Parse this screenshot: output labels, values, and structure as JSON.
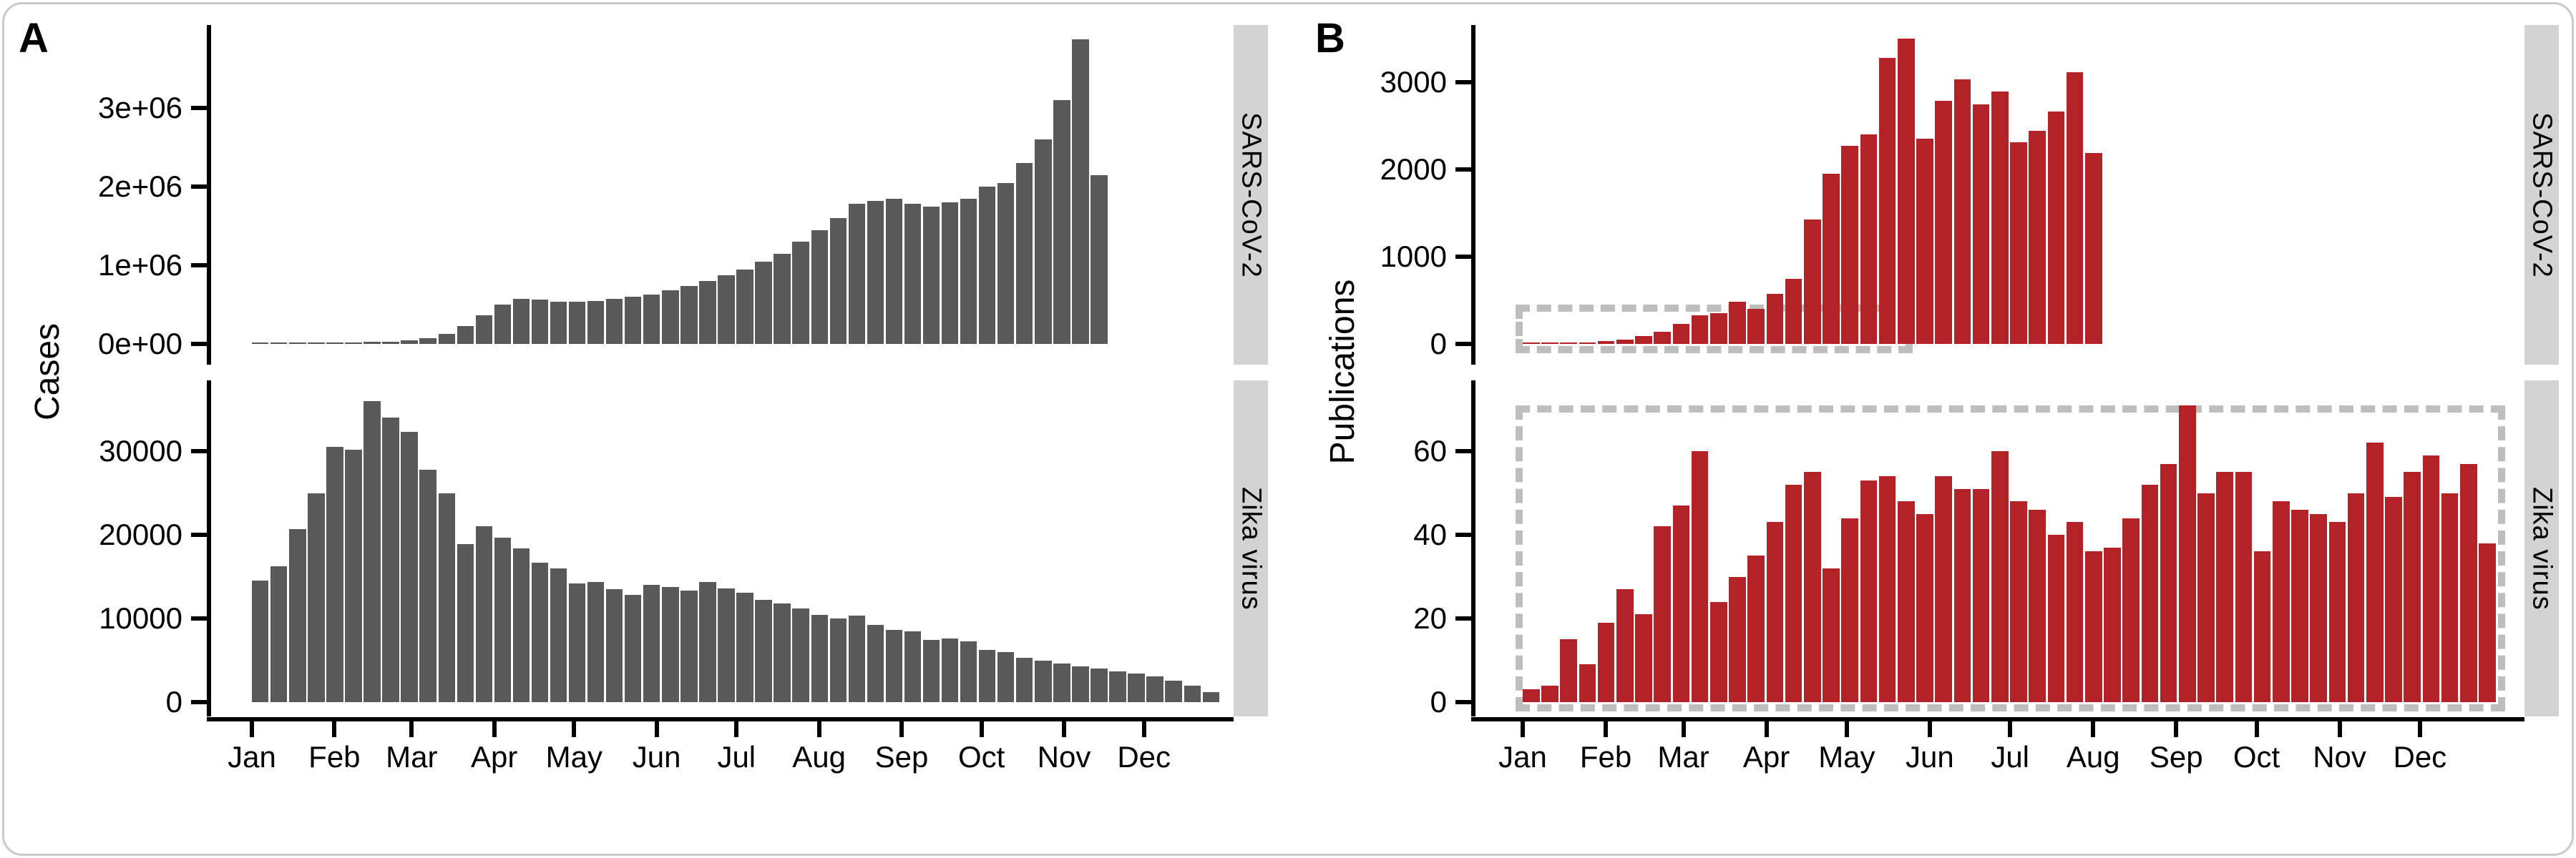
{
  "chart_data": {
    "type": "bar",
    "description": "Weekly bar charts: epidemic cases (panel A, gray) and scientific publications (panel B, red) for SARS-CoV-2 (2020) and Zika virus (2016), faceted by virus with months Jan-Dec on the x axis.",
    "x_axis": {
      "tick_labels": [
        "Jan",
        "Feb",
        "Mar",
        "Apr",
        "May",
        "Jun",
        "Jul",
        "Aug",
        "Sep",
        "Oct",
        "Nov",
        "Dec"
      ],
      "unit": "weekly bars across one year"
    },
    "styles": {
      "dash_color": "#BEBEBE",
      "strip_bg": "#D3D3D3",
      "axis_color": "#000000",
      "background": "#FFFFFF",
      "card_border": "#C9C9C9"
    },
    "panels": [
      {
        "label": "A",
        "y_axis_title": "Cases",
        "bar_color": "#595959",
        "facets": [
          {
            "strip_label": "SARS-CoV-2",
            "y_ticks": {
              "values": [
                0,
                1000000,
                2000000,
                3000000
              ],
              "labels": [
                "0e+00",
                "1e+06",
                "2e+06",
                "3e+06"
              ]
            },
            "ylim": [
              0,
              4050000
            ],
            "values": [
              1000,
              2000,
              4000,
              8000,
              12000,
              18000,
              25000,
              30000,
              45000,
              75000,
              130000,
              230000,
              360000,
              500000,
              570000,
              560000,
              540000,
              540000,
              550000,
              570000,
              600000,
              630000,
              680000,
              740000,
              800000,
              870000,
              950000,
              1050000,
              1150000,
              1300000,
              1450000,
              1600000,
              1780000,
              1820000,
              1850000,
              1780000,
              1750000,
              1800000,
              1850000,
              2000000,
              2050000,
              2300000,
              2600000,
              3100000,
              3870000,
              2150000
            ]
          },
          {
            "strip_label": "Zika virus",
            "y_ticks": {
              "values": [
                0,
                10000,
                20000,
                30000
              ],
              "labels": [
                "0",
                "10000",
                "20000",
                "30000"
              ]
            },
            "ylim": [
              0,
              38500
            ],
            "values": [
              14500,
              16200,
              20700,
              25000,
              30500,
              30200,
              36000,
              34000,
              32300,
              27800,
              25000,
              18900,
              21000,
              19700,
              18400,
              16700,
              16000,
              14200,
              14400,
              13500,
              12800,
              14000,
              13800,
              13300,
              14400,
              13600,
              13100,
              12200,
              11800,
              11200,
              10400,
              10000,
              10300,
              9200,
              8600,
              8500,
              7400,
              7600,
              7300,
              6200,
              6000,
              5300,
              5000,
              4600,
              4300,
              4000,
              3700,
              3400,
              3100,
              2600,
              2000,
              1200
            ]
          }
        ]
      },
      {
        "label": "B",
        "y_axis_title": "Publications",
        "bar_color": "#B22226",
        "facets": [
          {
            "strip_label": "SARS-CoV-2",
            "y_ticks": {
              "values": [
                0,
                1000,
                2000,
                3000
              ],
              "labels": [
                "0",
                "1000",
                "2000",
                "3000"
              ]
            },
            "ylim": [
              0,
              3650
            ],
            "values": [
              20,
              8,
              12,
              18,
              30,
              50,
              90,
              140,
              230,
              330,
              350,
              480,
              400,
              570,
              750,
              1430,
              1950,
              2270,
              2400,
              3280,
              3500,
              2355,
              2790,
              3030,
              2750,
              2890,
              2315,
              2440,
              2665,
              3115,
              2190
            ],
            "zoom_box": {
              "weeks": [
                -0.4,
                20.8
              ],
              "values": [
                -106,
                450
              ]
            }
          },
          {
            "strip_label": "Zika virus",
            "y_ticks": {
              "values": [
                0,
                20,
                40,
                60
              ],
              "labels": [
                "0",
                "20",
                "40",
                "60"
              ]
            },
            "ylim": [
              0,
              77
            ],
            "values": [
              3,
              4,
              15,
              9,
              19,
              27,
              21,
              42,
              47,
              60,
              24,
              30,
              35,
              43,
              52,
              55,
              32,
              44,
              53,
              54,
              48,
              45,
              54,
              51,
              51,
              60,
              48,
              46,
              40,
              43,
              36,
              37,
              44,
              52,
              57,
              71,
              50,
              55,
              55,
              36,
              48,
              46,
              45,
              43,
              50,
              62,
              49,
              55,
              59,
              50,
              57,
              38
            ],
            "zoom_box": {
              "weeks": [
                -0.4,
                52.4
              ],
              "values": [
                -2.2,
                71
              ]
            }
          }
        ]
      }
    ]
  }
}
